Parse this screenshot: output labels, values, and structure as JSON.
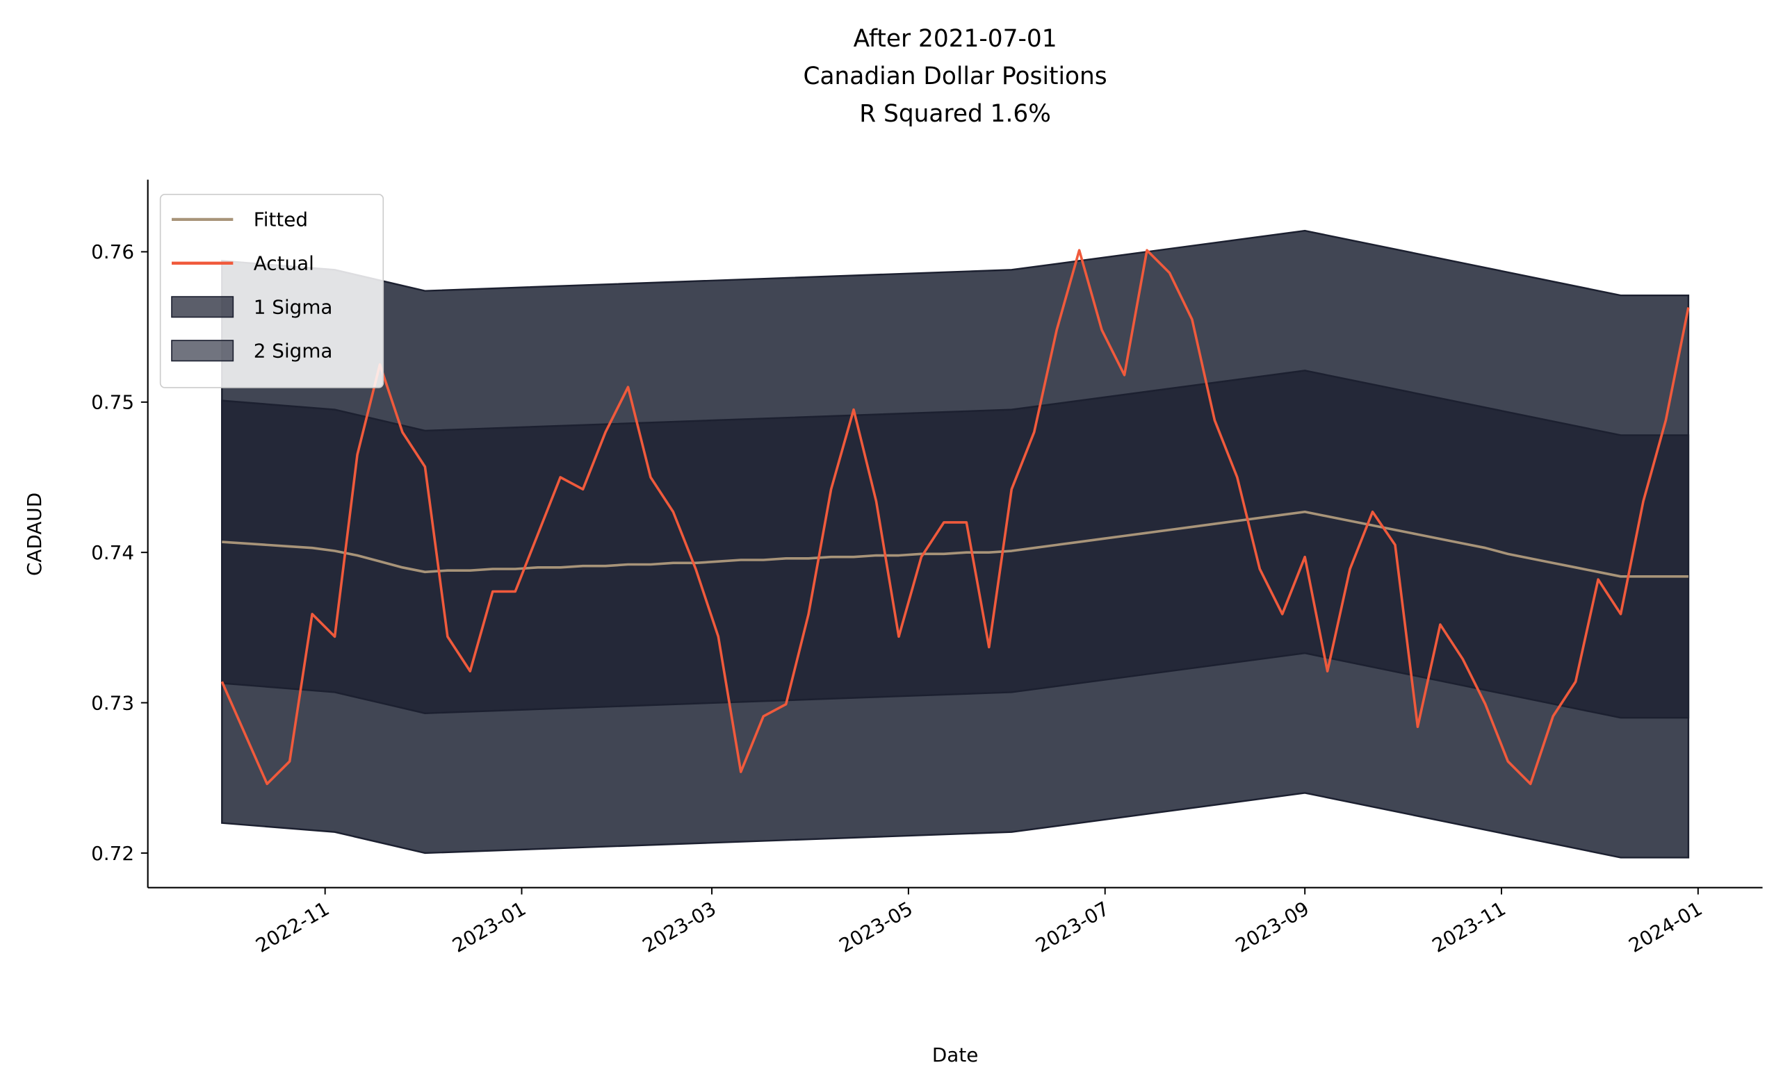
{
  "chart_data": {
    "type": "line",
    "title": [
      "After 2021-07-01",
      "Canadian Dollar Positions",
      "R Squared 1.6%"
    ],
    "x_label": "Date",
    "y_label": "CADAUD",
    "x": [
      "2022-09-30",
      "2022-10-07",
      "2022-10-14",
      "2022-10-21",
      "2022-10-28",
      "2022-11-04",
      "2022-11-11",
      "2022-11-18",
      "2022-11-25",
      "2022-12-02",
      "2022-12-09",
      "2022-12-16",
      "2022-12-23",
      "2022-12-30",
      "2023-01-06",
      "2023-01-13",
      "2023-01-20",
      "2023-01-27",
      "2023-02-03",
      "2023-02-10",
      "2023-02-17",
      "2023-02-24",
      "2023-03-03",
      "2023-03-10",
      "2023-03-17",
      "2023-03-24",
      "2023-03-31",
      "2023-04-07",
      "2023-04-14",
      "2023-04-21",
      "2023-04-28",
      "2023-05-05",
      "2023-05-12",
      "2023-05-19",
      "2023-05-26",
      "2023-06-02",
      "2023-06-09",
      "2023-06-16",
      "2023-06-23",
      "2023-06-30",
      "2023-07-07",
      "2023-07-14",
      "2023-07-21",
      "2023-07-28",
      "2023-08-04",
      "2023-08-11",
      "2023-08-18",
      "2023-08-25",
      "2023-09-01",
      "2023-09-08",
      "2023-09-15",
      "2023-09-22",
      "2023-09-29",
      "2023-10-06",
      "2023-10-13",
      "2023-10-20",
      "2023-10-27",
      "2023-11-03",
      "2023-11-10",
      "2023-11-17",
      "2023-11-24",
      "2023-12-01",
      "2023-12-08",
      "2023-12-15",
      "2023-12-22",
      "2023-12-29"
    ],
    "series": [
      {
        "name": "Fitted",
        "color": "#a89479",
        "values": [
          0.7407,
          0.7406,
          0.7405,
          0.7404,
          0.7403,
          0.7401,
          0.7398,
          0.7394,
          0.739,
          0.7387,
          0.7388,
          0.7388,
          0.7389,
          0.7389,
          0.739,
          0.739,
          0.7391,
          0.7391,
          0.7392,
          0.7392,
          0.7393,
          0.7393,
          0.7394,
          0.7395,
          0.7395,
          0.7396,
          0.7396,
          0.7397,
          0.7397,
          0.7398,
          0.7398,
          0.7399,
          0.7399,
          0.74,
          0.74,
          0.7401,
          0.7403,
          0.7405,
          0.7407,
          0.7409,
          0.7411,
          0.7413,
          0.7415,
          0.7417,
          0.7419,
          0.7421,
          0.7423,
          0.7425,
          0.7427,
          0.7424,
          0.7421,
          0.7418,
          0.7415,
          0.7412,
          0.7409,
          0.7406,
          0.7403,
          0.7399,
          0.7396,
          0.7393,
          0.739,
          0.7387,
          0.7384,
          0.7384,
          0.7384,
          0.7384
        ]
      },
      {
        "name": "Actual",
        "color": "#f05a3c",
        "values": [
          0.7314,
          0.728,
          0.7246,
          0.7261,
          0.7359,
          0.7344,
          0.7465,
          0.7525,
          0.748,
          0.7457,
          0.7344,
          0.7321,
          0.7374,
          0.7374,
          0.7412,
          0.745,
          0.7442,
          0.748,
          0.751,
          0.745,
          0.7427,
          0.7389,
          0.7344,
          0.7254,
          0.7291,
          0.7299,
          0.7359,
          0.7442,
          0.7495,
          0.7434,
          0.7344,
          0.7397,
          0.742,
          0.742,
          0.7337,
          0.7442,
          0.748,
          0.7548,
          0.7601,
          0.7548,
          0.7518,
          0.7601,
          0.7586,
          0.7555,
          0.7488,
          0.745,
          0.7389,
          0.7359,
          0.7397,
          0.7321,
          0.7389,
          0.7427,
          0.7405,
          0.7284,
          0.7352,
          0.7329,
          0.7299,
          0.7261,
          0.7246,
          0.7291,
          0.7314,
          0.7382,
          0.7359,
          0.7434,
          0.7488,
          0.7563
        ]
      }
    ],
    "bands": [
      {
        "name": "1 Sigma",
        "color": "#242838",
        "x": [
          "2022-09-30",
          "2022-11-04",
          "2022-12-02",
          "2023-06-02",
          "2023-09-01",
          "2023-12-08",
          "2023-12-29"
        ],
        "upper": [
          0.7501,
          0.7495,
          0.7481,
          0.7495,
          0.7521,
          0.7478,
          0.7478
        ],
        "lower": [
          0.7313,
          0.7307,
          0.7293,
          0.7307,
          0.7333,
          0.729,
          0.729
        ]
      },
      {
        "name": "2 Sigma",
        "color": "#414654",
        "x": [
          "2022-09-30",
          "2022-11-04",
          "2022-12-02",
          "2023-06-02",
          "2023-09-01",
          "2023-12-08",
          "2023-12-29"
        ],
        "upper": [
          0.7594,
          0.7588,
          0.7574,
          0.7588,
          0.7614,
          0.7571,
          0.7571
        ],
        "lower": [
          0.722,
          0.7214,
          0.72,
          0.7214,
          0.724,
          0.7197,
          0.7197
        ]
      }
    ],
    "xlim": [
      "2022-09-07",
      "2024-01-21"
    ],
    "xticks": [
      {
        "value": "2022-11-01",
        "label": "2022-11"
      },
      {
        "value": "2023-01-01",
        "label": "2023-01"
      },
      {
        "value": "2023-03-01",
        "label": "2023-03"
      },
      {
        "value": "2023-05-01",
        "label": "2023-05"
      },
      {
        "value": "2023-07-01",
        "label": "2023-07"
      },
      {
        "value": "2023-09-01",
        "label": "2023-09"
      },
      {
        "value": "2023-11-01",
        "label": "2023-11"
      },
      {
        "value": "2024-01-01",
        "label": "2024-01"
      }
    ],
    "ylim": [
      0.7177,
      0.7648
    ],
    "yticks": [
      0.72,
      0.73,
      0.74,
      0.75,
      0.76
    ],
    "legend": "upper left"
  }
}
